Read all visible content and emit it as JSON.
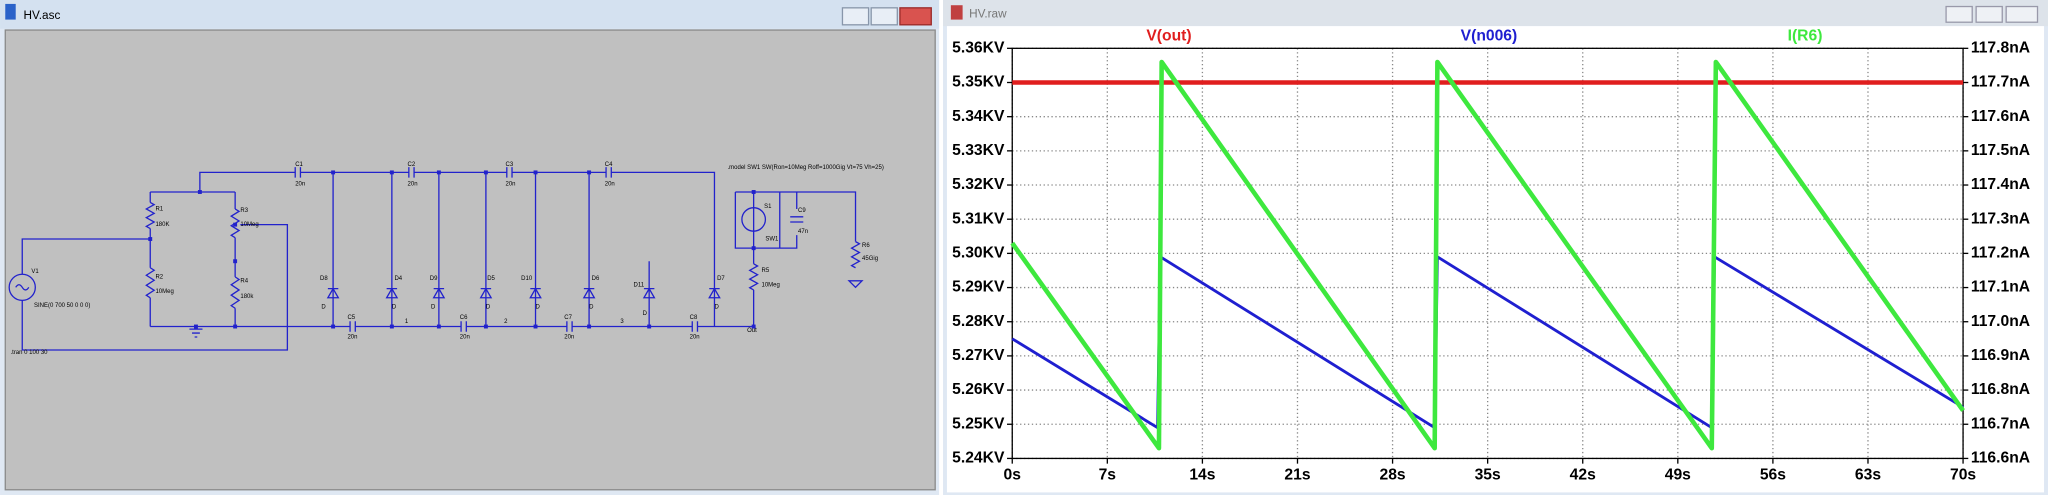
{
  "windows": {
    "schematic_title": "HV.asc",
    "plot_title": "HV.raw"
  },
  "schematic": {
    "labels": [
      "V1",
      "SINE(0 700 50 0 0 0)",
      ".tran 0 100 30",
      "R1",
      "180K",
      "R2",
      "10Meg",
      "R3",
      "10Meg",
      "R4",
      "180k",
      "C1",
      "20n",
      "C2",
      "20n",
      "C3",
      "20n",
      "C4",
      "20n",
      "C5",
      "20n",
      "C6",
      "20n",
      "C7",
      "20n",
      "C8",
      "20n",
      "D8",
      "D",
      "D4",
      "D",
      "D9",
      "D",
      "D5",
      "D",
      "D10",
      "D",
      "D6",
      "D",
      "D11",
      "D",
      "D7",
      "D",
      "1",
      "2",
      "3",
      "Out",
      ".model SW1 SW(Ron=10Meg Roff=1000Gig Vt=75 Vh=25)",
      "S1",
      "SW1",
      "C9",
      "47n",
      "R5",
      "10Meg",
      "R6",
      "45Gig"
    ]
  },
  "chart_data": {
    "type": "line",
    "series": [
      {
        "name": "V(out)",
        "color": "#e01e1e",
        "x": [
          0,
          70
        ],
        "values": [
          5.35,
          5.35
        ]
      },
      {
        "name": "V(n006)",
        "color": "#1f1fd0",
        "x": [
          0,
          10.7,
          10.9,
          31.1,
          31.3,
          51.5,
          51.7,
          70
        ],
        "values": [
          5.275,
          5.249,
          5.299,
          5.249,
          5.299,
          5.249,
          5.299,
          5.255
        ]
      },
      {
        "name": "I(R6)",
        "color": "#3ee83e",
        "axis": "y2",
        "x": [
          0,
          10.8,
          11.0,
          31.1,
          31.3,
          51.5,
          51.8,
          70
        ],
        "values": [
          117.23,
          116.63,
          117.76,
          116.63,
          117.76,
          116.63,
          117.76,
          116.74
        ]
      }
    ],
    "xlim": [
      0,
      70
    ],
    "xticks": [
      {
        "value": 0,
        "label": "0s"
      },
      {
        "value": 7,
        "label": "7s"
      },
      {
        "value": 14,
        "label": "14s"
      },
      {
        "value": 21,
        "label": "21s"
      },
      {
        "value": 28,
        "label": "28s"
      },
      {
        "value": 35,
        "label": "35s"
      },
      {
        "value": 42,
        "label": "42s"
      },
      {
        "value": 49,
        "label": "49s"
      },
      {
        "value": 56,
        "label": "56s"
      },
      {
        "value": 63,
        "label": "63s"
      },
      {
        "value": 70,
        "label": "70s"
      }
    ],
    "ylim": [
      5.24,
      5.36
    ],
    "yticks": [
      {
        "value": 5.24,
        "label": "5.24KV"
      },
      {
        "value": 5.25,
        "label": "5.25KV"
      },
      {
        "value": 5.26,
        "label": "5.26KV"
      },
      {
        "value": 5.27,
        "label": "5.27KV"
      },
      {
        "value": 5.28,
        "label": "5.28KV"
      },
      {
        "value": 5.29,
        "label": "5.29KV"
      },
      {
        "value": 5.3,
        "label": "5.30KV"
      },
      {
        "value": 5.31,
        "label": "5.31KV"
      },
      {
        "value": 5.32,
        "label": "5.32KV"
      },
      {
        "value": 5.33,
        "label": "5.33KV"
      },
      {
        "value": 5.34,
        "label": "5.34KV"
      },
      {
        "value": 5.35,
        "label": "5.35KV"
      },
      {
        "value": 5.36,
        "label": "5.36KV"
      }
    ],
    "y2lim": [
      116.6,
      117.8
    ],
    "y2ticks": [
      {
        "value": 116.6,
        "label": "116.6nA"
      },
      {
        "value": 116.7,
        "label": "116.7nA"
      },
      {
        "value": 116.8,
        "label": "116.8nA"
      },
      {
        "value": 116.9,
        "label": "116.9nA"
      },
      {
        "value": 117.0,
        "label": "117.0nA"
      },
      {
        "value": 117.1,
        "label": "117.1nA"
      },
      {
        "value": 117.2,
        "label": "117.2nA"
      },
      {
        "value": 117.3,
        "label": "117.3nA"
      },
      {
        "value": 117.4,
        "label": "117.4nA"
      },
      {
        "value": 117.5,
        "label": "117.5nA"
      },
      {
        "value": 117.6,
        "label": "117.6nA"
      },
      {
        "value": 117.7,
        "label": "117.7nA"
      },
      {
        "value": 117.8,
        "label": "117.8nA"
      }
    ],
    "grid": true
  }
}
